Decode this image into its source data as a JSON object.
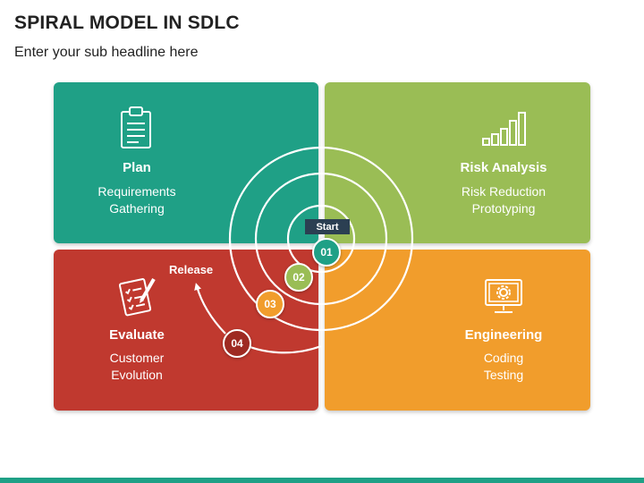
{
  "header": {
    "title": "SPIRAL MODEL IN SDLC",
    "subtitle": "Enter your sub headline here"
  },
  "quadrants": {
    "plan": {
      "title": "Plan",
      "lines": [
        "Requirements",
        "Gathering"
      ],
      "icon": "clipboard-icon",
      "color": "#1fa086"
    },
    "risk": {
      "title": "Risk Analysis",
      "lines": [
        "Risk Reduction",
        "Prototyping"
      ],
      "icon": "bar-chart-icon",
      "color": "#9abd55"
    },
    "evaluate": {
      "title": "Evaluate",
      "lines": [
        "Customer",
        "Evolution"
      ],
      "icon": "checklist-pencil-icon",
      "color": "#c0392f"
    },
    "engineering": {
      "title": "Engineering",
      "lines": [
        "Coding",
        "Testing"
      ],
      "icon": "monitor-gear-icon",
      "color": "#f19d2c"
    }
  },
  "spiral": {
    "start_label": "Start",
    "release_label": "Release",
    "steps": [
      "01",
      "02",
      "03",
      "04"
    ]
  }
}
